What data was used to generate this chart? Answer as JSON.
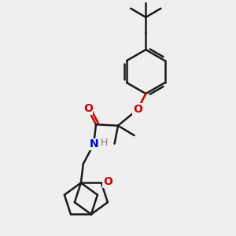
{
  "background_color": "#efefef",
  "bond_color": "#1a1a1a",
  "bond_width": 1.8,
  "O_color": "#cc0000",
  "N_color": "#0000cc",
  "H_color": "#808080",
  "font_size": 9,
  "figsize": [
    3.0,
    3.0
  ],
  "dpi": 100,
  "xlim": [
    0,
    10
  ],
  "ylim": [
    0,
    10
  ]
}
